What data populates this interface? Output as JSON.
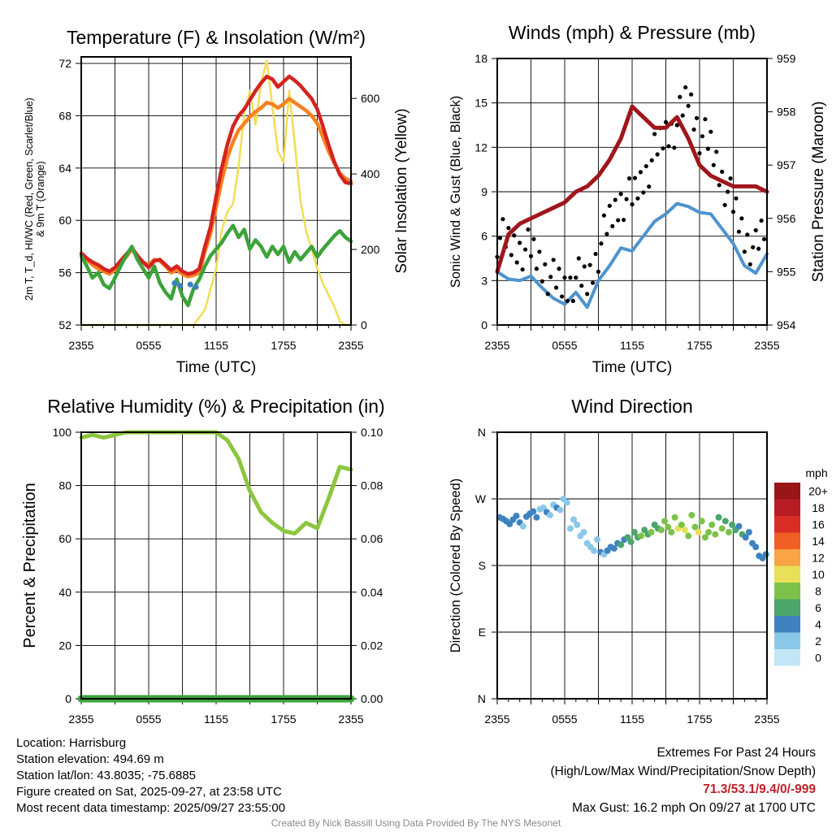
{
  "chart_data": [
    {
      "id": "temp",
      "type": "line",
      "title": "Temperature (F) & Insolation (W/m²)",
      "xlabel": "Time (UTC)",
      "ylabel_lines": [
        "2m T, T_d, HI/WC (Red, Green, Scarlet/Blue)",
        "& 9m T (Orange)"
      ],
      "y2label": "Solar Insolation (Yellow)",
      "categories": [
        "2355",
        "0555",
        "1155",
        "1755",
        "2355"
      ],
      "ylim": [
        52,
        72.5
      ],
      "yticks": [
        52,
        56,
        60,
        64,
        68,
        72
      ],
      "y2lim": [
        0,
        710
      ],
      "y2ticks": [
        0,
        200,
        400,
        600
      ],
      "series": [
        {
          "name": "2m T",
          "color": "#d42320",
          "axis": "left",
          "x": [
            0,
            0.5,
            1,
            1.5,
            2,
            2.5,
            3,
            3.5,
            4,
            4.5,
            5,
            5.5,
            6,
            6.5,
            7,
            7.5,
            8,
            8.5,
            9,
            9.5,
            10,
            10.5,
            11,
            11.5,
            12,
            12.5,
            13,
            13.5,
            14,
            14.5,
            15,
            15.5,
            16,
            16.5,
            17,
            17.5,
            18,
            18.5,
            19,
            19.5,
            20,
            20.5,
            21,
            21.5,
            22,
            22.5,
            23,
            23.5,
            24
          ],
          "y": [
            57.5,
            57.1,
            56.8,
            56.6,
            56.3,
            56.1,
            56.4,
            56.9,
            57.4,
            57.9,
            57.3,
            56.8,
            56.4,
            56.9,
            57.0,
            56.6,
            56.2,
            56.5,
            56.1,
            55.9,
            56.0,
            56.3,
            58.0,
            59.5,
            61.8,
            64.0,
            65.8,
            67.2,
            68.0,
            68.5,
            69.2,
            69.9,
            70.5,
            71.0,
            70.8,
            70.2,
            70.6,
            71.0,
            70.7,
            70.3,
            69.8,
            69.3,
            68.5,
            67.2,
            65.8,
            64.5,
            63.5,
            62.9,
            62.8
          ]
        },
        {
          "name": "9m T",
          "color": "#f7801f",
          "axis": "left",
          "x": [
            0,
            0.5,
            1,
            1.5,
            2,
            2.5,
            3,
            3.5,
            4,
            4.5,
            5,
            5.5,
            6,
            6.5,
            7,
            7.5,
            8,
            8.5,
            9,
            9.5,
            10,
            10.5,
            11,
            11.5,
            12,
            12.5,
            13,
            13.5,
            14,
            14.5,
            15,
            15.5,
            16,
            16.5,
            17,
            17.5,
            18,
            18.5,
            19,
            19.5,
            20,
            20.5,
            21,
            21.5,
            22,
            22.5,
            23,
            23.5,
            24
          ],
          "y": [
            57.3,
            57.0,
            56.6,
            56.3,
            56.1,
            55.9,
            56.2,
            56.7,
            57.2,
            57.8,
            57.2,
            56.8,
            56.6,
            57.0,
            56.9,
            56.5,
            56.0,
            56.2,
            55.9,
            55.7,
            55.8,
            56.0,
            57.6,
            59.0,
            61.0,
            63.0,
            64.8,
            66.0,
            66.9,
            67.4,
            67.9,
            68.3,
            68.6,
            69.0,
            68.9,
            68.6,
            68.9,
            69.3,
            69.0,
            68.7,
            68.4,
            68.0,
            67.4,
            66.4,
            65.3,
            64.4,
            63.6,
            63.2,
            63.0
          ]
        },
        {
          "name": "2m Td",
          "color": "#3ca33a",
          "axis": "left",
          "x": [
            0,
            0.5,
            1,
            1.5,
            2,
            2.5,
            3,
            3.5,
            4,
            4.5,
            5,
            5.5,
            6,
            6.5,
            7,
            7.5,
            8,
            8.5,
            9,
            9.5,
            10,
            10.5,
            11,
            11.5,
            12,
            12.5,
            13,
            13.5,
            14,
            14.5,
            15,
            15.5,
            16,
            16.5,
            17,
            17.5,
            18,
            18.5,
            19,
            19.5,
            20,
            20.5,
            21,
            21.5,
            22,
            22.5,
            23,
            23.5,
            24
          ],
          "y": [
            57.3,
            56.5,
            55.6,
            56.0,
            55.1,
            54.8,
            55.6,
            56.5,
            57.3,
            58.0,
            57.0,
            56.3,
            55.6,
            56.5,
            55.2,
            54.5,
            54.0,
            55.5,
            54.2,
            53.5,
            54.8,
            55.5,
            56.5,
            57.3,
            57.8,
            58.3,
            59.0,
            59.6,
            58.7,
            59.3,
            57.8,
            58.5,
            58.0,
            57.2,
            58.0,
            57.4,
            58.0,
            56.8,
            57.6,
            57.0,
            57.5,
            58.0,
            57.2,
            57.8,
            58.3,
            58.8,
            59.2,
            58.7,
            58.4
          ]
        },
        {
          "name": "Solar Insolation",
          "color": "#f2dd55",
          "axis": "right",
          "x": [
            0,
            5,
            10,
            11,
            12,
            12.5,
            13,
            13.5,
            14,
            14.5,
            15,
            15.5,
            16,
            16.5,
            17,
            17.5,
            18,
            18.5,
            19,
            19.5,
            20,
            20.5,
            21,
            21.5,
            22,
            22.5,
            23,
            23.5,
            24
          ],
          "y": [
            0,
            0,
            0,
            40,
            150,
            250,
            300,
            320,
            420,
            560,
            620,
            530,
            640,
            700,
            580,
            460,
            430,
            620,
            480,
            330,
            250,
            200,
            150,
            110,
            80,
            50,
            10,
            0,
            0
          ]
        },
        {
          "name": "Wind Chill",
          "color": "#3b7fc2",
          "axis": "left",
          "x": [
            8.3,
            8.8,
            9.7,
            10.2
          ],
          "y": [
            55.2,
            55.0,
            55.1,
            54.9
          ]
        }
      ]
    },
    {
      "id": "wind",
      "type": "line",
      "title": "Winds (mph) & Pressure (mb)",
      "xlabel": "Time (UTC)",
      "ylabel": "Sonic Wind & Gust (Blue, Black)",
      "y2label": "Station Pressure (Maroon)",
      "categories": [
        "2355",
        "0555",
        "1155",
        "1755",
        "2355"
      ],
      "ylim": [
        0,
        18
      ],
      "yticks": [
        0,
        3,
        6,
        9,
        12,
        15,
        18
      ],
      "y2lim": [
        954,
        959
      ],
      "y2ticks": [
        954,
        955,
        956,
        957,
        958,
        959
      ],
      "series": [
        {
          "name": "Sonic Wind",
          "color": "#4d93cf",
          "axis": "left",
          "x": [
            0,
            1,
            2,
            3,
            4,
            5,
            6,
            7,
            8,
            9,
            10,
            11,
            12,
            13,
            14,
            15,
            16,
            17,
            18,
            19,
            20,
            21,
            22,
            23,
            24
          ],
          "y": [
            3.6,
            3.1,
            3.0,
            3.3,
            2.5,
            1.8,
            1.4,
            2.2,
            1.2,
            3.0,
            4.0,
            5.2,
            5.0,
            6.0,
            7.0,
            7.5,
            8.2,
            8.0,
            7.6,
            7.5,
            6.5,
            5.5,
            4.0,
            3.5,
            4.8
          ]
        },
        {
          "name": "Gust",
          "color": "#000000",
          "axis": "left",
          "x": [
            0,
            1,
            2,
            3,
            4,
            5,
            6,
            7,
            8,
            9,
            10,
            11,
            12,
            13,
            14,
            15,
            16,
            17,
            18,
            19,
            20,
            21,
            22,
            23,
            24
          ],
          "y": [
            6.0,
            5.5,
            5.2,
            5.0,
            4.0,
            3.0,
            2.5,
            3.2,
            2.8,
            5.0,
            7.0,
            8.5,
            8.5,
            10.0,
            11.5,
            13.0,
            13.5,
            15.5,
            13.0,
            12.0,
            10.0,
            8.0,
            6.0,
            5.0,
            7.0
          ]
        },
        {
          "name": "Station Pressure",
          "color": "#a0161c",
          "axis": "right",
          "x": [
            0,
            1,
            2,
            3,
            4,
            5,
            6,
            7,
            8,
            9,
            10,
            11,
            12,
            13,
            14,
            15,
            16,
            17,
            18,
            19,
            20,
            21,
            22,
            23,
            24
          ],
          "y": [
            955.0,
            955.7,
            955.9,
            956.0,
            956.1,
            956.2,
            956.3,
            956.5,
            956.6,
            956.8,
            957.1,
            957.5,
            958.1,
            957.9,
            957.7,
            957.7,
            957.9,
            957.5,
            957.0,
            956.8,
            956.7,
            956.6,
            956.6,
            956.6,
            956.5
          ]
        }
      ]
    },
    {
      "id": "rh",
      "type": "line",
      "title": "Relative Humidity (%) & Precipitation (in)",
      "ylabel": "Percent & Precipitation",
      "categories": [
        "2355",
        "0555",
        "1155",
        "1755",
        "2355"
      ],
      "ylim": [
        0,
        100
      ],
      "yticks": [
        0,
        20,
        40,
        60,
        80,
        100
      ],
      "y2lim": [
        0,
        0.1
      ],
      "y2ticks": [
        "0.00",
        "0.02",
        "0.04",
        "0.06",
        "0.08",
        "0.10"
      ],
      "series": [
        {
          "name": "Relative Humidity",
          "color": "#8cc63f",
          "axis": "left",
          "x": [
            0,
            1,
            2,
            3,
            4,
            5,
            6,
            7,
            8,
            9,
            10,
            11,
            12,
            13,
            14,
            15,
            16,
            17,
            18,
            19,
            20,
            21,
            22,
            23,
            24
          ],
          "y": [
            98,
            99,
            98,
            99,
            100,
            100,
            100,
            100,
            100,
            100,
            100,
            100,
            100,
            97,
            90,
            78,
            70,
            66,
            63,
            62,
            66,
            64,
            75,
            87,
            86
          ]
        },
        {
          "name": "Precipitation",
          "color": "#3ca33a",
          "axis": "right",
          "x": [
            0,
            24
          ],
          "y": [
            0,
            0
          ]
        }
      ]
    },
    {
      "id": "dir",
      "type": "scatter",
      "title": "Wind Direction",
      "ylabel": "Direction (Colored By Speed)",
      "categories": [
        "2355",
        "0555",
        "1155",
        "1755",
        "2355"
      ],
      "ylim": [
        0,
        360
      ],
      "ytick_labels": [
        "N",
        "E",
        "S",
        "W",
        "N"
      ],
      "legend_title": "mph",
      "legend_labels": [
        "0",
        "2",
        "4",
        "6",
        "8",
        "10",
        "12",
        "14",
        "16",
        "18",
        "20+"
      ],
      "legend_colors": [
        "#c2e6f5",
        "#8ac8ea",
        "#3e82c0",
        "#4aa66a",
        "#7cc24a",
        "#e8e058",
        "#f8a447",
        "#ee6024",
        "#d82e26",
        "#b81d23",
        "#981618"
      ],
      "points": {
        "x": [
          0.2,
          0.5,
          0.8,
          1.1,
          1.4,
          1.7,
          2.0,
          2.3,
          2.6,
          2.9,
          3.2,
          3.5,
          3.8,
          4.1,
          4.4,
          4.7,
          5.0,
          5.3,
          5.6,
          5.9,
          6.2,
          6.5,
          6.8,
          7.1,
          7.4,
          7.7,
          8.0,
          8.3,
          8.6,
          8.9,
          9.2,
          9.5,
          9.8,
          10.1,
          10.4,
          10.7,
          11.0,
          11.3,
          11.6,
          11.9,
          12.2,
          12.5,
          12.8,
          13.1,
          13.4,
          13.7,
          14.0,
          14.3,
          14.6,
          14.9,
          15.2,
          15.5,
          15.8,
          16.1,
          16.4,
          16.7,
          17.0,
          17.3,
          17.6,
          17.9,
          18.2,
          18.5,
          18.8,
          19.1,
          19.4,
          19.7,
          20.0,
          20.3,
          20.6,
          20.9,
          21.2,
          21.5,
          21.8,
          22.1,
          22.4,
          22.7,
          23.0,
          23.3,
          23.6,
          23.9
        ],
        "y": [
          245,
          243,
          240,
          236,
          242,
          247,
          238,
          233,
          246,
          250,
          253,
          245,
          256,
          258,
          252,
          248,
          262,
          258,
          255,
          270,
          265,
          230,
          242,
          235,
          220,
          225,
          210,
          205,
          200,
          215,
          198,
          195,
          200,
          205,
          203,
          210,
          208,
          215,
          218,
          212,
          225,
          218,
          220,
          228,
          222,
          225,
          235,
          230,
          228,
          240,
          232,
          225,
          245,
          230,
          235,
          228,
          220,
          248,
          232,
          225,
          240,
          218,
          225,
          235,
          222,
          245,
          230,
          240,
          225,
          235,
          228,
          233,
          222,
          218,
          225,
          210,
          205,
          193,
          190,
          195
        ],
        "v": [
          3,
          3,
          4,
          3,
          3,
          4,
          3,
          2,
          3,
          4,
          3,
          3,
          2,
          2,
          3,
          2,
          2,
          3,
          2,
          2,
          1,
          2,
          1,
          2,
          1,
          2,
          1,
          2,
          1,
          2,
          3,
          2,
          4,
          3,
          3,
          4,
          5,
          4,
          5,
          5,
          6,
          5,
          7,
          6,
          5,
          7,
          6,
          6,
          8,
          7,
          8,
          7,
          8,
          9,
          8,
          9,
          8,
          7,
          8,
          9,
          8,
          7,
          8,
          7,
          8,
          6,
          7,
          6,
          7,
          5,
          6,
          4,
          5,
          4,
          3,
          3,
          4,
          3,
          4,
          3
        ]
      }
    }
  ],
  "info": {
    "location": "Location: Harrisburg",
    "elevation": "Station elevation: 494.69 m",
    "latlon": "Station lat/lon: 43.8035; -75.6885",
    "created": "Figure created on Sat, 2025-09-27, at 23:58 UTC",
    "recent": "Most recent data timestamp: 2025/09/27 23:55:00"
  },
  "extremes": {
    "title": "Extremes For Past 24 Hours",
    "subtitle": "(High/Low/Max Wind/Precipitation/Snow Depth)",
    "values": "71.3/53.1/9.4/0/-999",
    "max_gust": "Max Gust: 16.2 mph On 09/27 at 1700 UTC"
  },
  "credit": "Created By Nick Bassill Using Data Provided By The NYS Mesonet"
}
